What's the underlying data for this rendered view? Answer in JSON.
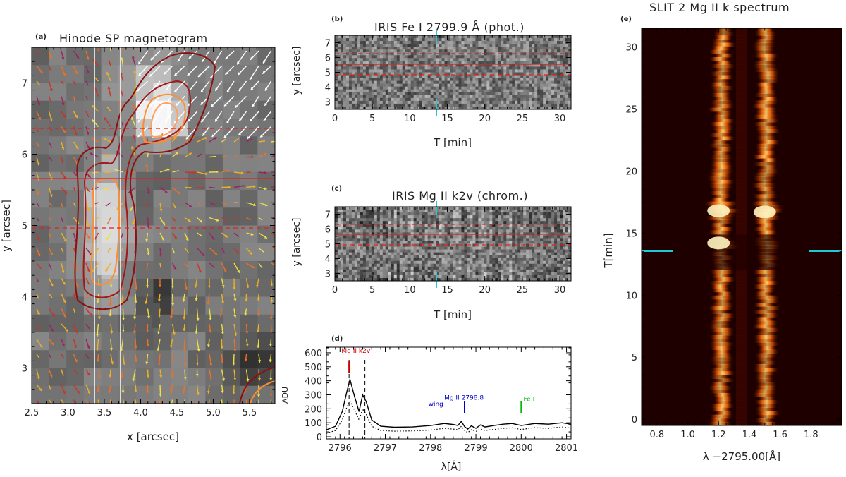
{
  "chart_data": [
    {
      "id": "a",
      "type": "heatmap",
      "panel_label": "(a)",
      "title": "Hinode SP magnetogram",
      "xlabel": "x [arcsec]",
      "ylabel": "y [arcsec]",
      "xlim": [
        2.5,
        5.85
      ],
      "ylim": [
        2.5,
        7.5
      ],
      "xticks": [
        "2.5",
        "3.0",
        "3.5",
        "4.0",
        "4.5",
        "5.0",
        "5.5"
      ],
      "yticks": [
        "3",
        "4",
        "5",
        "6",
        "7"
      ],
      "vertical_lines_x": [
        3.33,
        3.68
      ],
      "hline_solid_y": 5.65,
      "hlines_dashed_y": [
        4.95,
        6.35
      ],
      "cut_label": "ADU"
    },
    {
      "id": "b",
      "type": "heatmap",
      "panel_label": "(b)",
      "title": "IRIS Fe I 2799.9 Å (phot.)",
      "xlabel": "T [min]",
      "ylabel": "y [arcsec]",
      "xlim": [
        0,
        31.5
      ],
      "ylim": [
        2.5,
        7.5
      ],
      "xticks": [
        "0",
        "5",
        "10",
        "15",
        "20",
        "25",
        "30"
      ],
      "yticks": [
        "3",
        "4",
        "5",
        "6",
        "7"
      ],
      "marker_T": 14,
      "hline_solid_y": 5.65,
      "hlines_dashed_y": [
        4.95,
        6.35
      ]
    },
    {
      "id": "c",
      "type": "heatmap",
      "panel_label": "(c)",
      "title": "IRIS Mg II k2v (chrom.)",
      "xlabel": "T [min]",
      "ylabel": "y [arcsec]",
      "xlim": [
        0,
        31.5
      ],
      "ylim": [
        2.5,
        7.5
      ],
      "xticks": [
        "0",
        "5",
        "10",
        "15",
        "20",
        "25",
        "30"
      ],
      "yticks": [
        "3",
        "4",
        "5",
        "6",
        "7"
      ],
      "marker_T": 14,
      "hline_solid_y": 5.65,
      "hlines_dashed_y": [
        4.95,
        6.35
      ]
    },
    {
      "id": "d",
      "type": "line",
      "panel_label": "(d)",
      "xlabel": "λ[Å]",
      "ylabel": "ADU",
      "xlim": [
        2795.7,
        2801.1
      ],
      "ylim": [
        -15,
        640
      ],
      "xticks": [
        "2796",
        "2797",
        "2798",
        "2799",
        "2800",
        "2801"
      ],
      "yticks": [
        "0",
        "100",
        "200",
        "300",
        "400",
        "500",
        "600"
      ],
      "series": [
        {
          "name": "solid",
          "x": [
            2795.7,
            2795.9,
            2796.05,
            2796.15,
            2796.22,
            2796.32,
            2796.42,
            2796.5,
            2796.58,
            2796.7,
            2796.9,
            2797.2,
            2797.6,
            2798.0,
            2798.3,
            2798.5,
            2798.6,
            2798.68,
            2798.75,
            2798.82,
            2798.9,
            2799.0,
            2799.1,
            2799.2,
            2799.4,
            2799.6,
            2799.8,
            2800.0,
            2800.3,
            2800.6,
            2800.9,
            2801.1
          ],
          "y": [
            50,
            75,
            180,
            320,
            410,
            290,
            180,
            300,
            250,
            120,
            75,
            68,
            70,
            80,
            95,
            88,
            80,
            110,
            72,
            55,
            78,
            60,
            85,
            70,
            80,
            90,
            95,
            80,
            95,
            90,
            100,
            90
          ]
        },
        {
          "name": "dotted",
          "x": [
            2795.7,
            2795.9,
            2796.05,
            2796.15,
            2796.22,
            2796.32,
            2796.42,
            2796.5,
            2796.58,
            2796.7,
            2796.9,
            2797.2,
            2797.6,
            2798.0,
            2798.3,
            2798.5,
            2798.6,
            2798.68,
            2798.75,
            2798.82,
            2798.9,
            2799.0,
            2799.1,
            2799.2,
            2799.4,
            2799.6,
            2799.8,
            2800.0,
            2800.3,
            2800.6,
            2800.9,
            2801.1
          ],
          "y": [
            25,
            45,
            120,
            210,
            255,
            190,
            120,
            200,
            160,
            75,
            45,
            40,
            42,
            48,
            60,
            55,
            50,
            75,
            45,
            30,
            50,
            38,
            55,
            45,
            52,
            60,
            64,
            52,
            65,
            60,
            70,
            62
          ]
        }
      ],
      "vlines_dashed_x": [
        2796.2,
        2796.55
      ],
      "annotations": [
        {
          "text": "Mg II k2v",
          "x": 2796.35,
          "y": 600,
          "color": "#d00000"
        },
        {
          "text": "Mg II 2798.8",
          "x": 2798.3,
          "y": 265,
          "color": "#0000cc"
        },
        {
          "text": "wing",
          "x": 2797.95,
          "y": 220,
          "color": "#0000cc"
        },
        {
          "text": "Fe I",
          "x": 2800.05,
          "y": 255,
          "color": "#00bb00"
        }
      ],
      "tick_marks": [
        {
          "x": 2796.2,
          "y0": 455,
          "y1": 540,
          "color": "#d00000"
        },
        {
          "x": 2798.75,
          "y0": 170,
          "y1": 255,
          "color": "#0000cc"
        },
        {
          "x": 2800.0,
          "y0": 170,
          "y1": 255,
          "color": "#00bb00"
        }
      ]
    },
    {
      "id": "e",
      "type": "heatmap",
      "panel_label": "(e)",
      "title": "SLIT 2 Mg II k spectrum",
      "xlabel": "λ −2795.00[Å]",
      "ylabel": "T[min]",
      "xlim": [
        0.7,
        2.0
      ],
      "ylim": [
        -0.5,
        31.5
      ],
      "xticks": [
        "0.8",
        "1.0",
        "1.2",
        "1.4",
        "1.6",
        "1.8"
      ],
      "yticks": [
        "0",
        "5",
        "10",
        "15",
        "20",
        "25",
        "30"
      ],
      "marker_T": 14,
      "emission_lines_x": [
        1.22,
        1.51
      ]
    }
  ],
  "colors": {
    "red_contour": "#8b1010",
    "orange_contour": "#ff8c30",
    "cyan_marker": "#22c8d8",
    "red_line": "#e02020"
  }
}
